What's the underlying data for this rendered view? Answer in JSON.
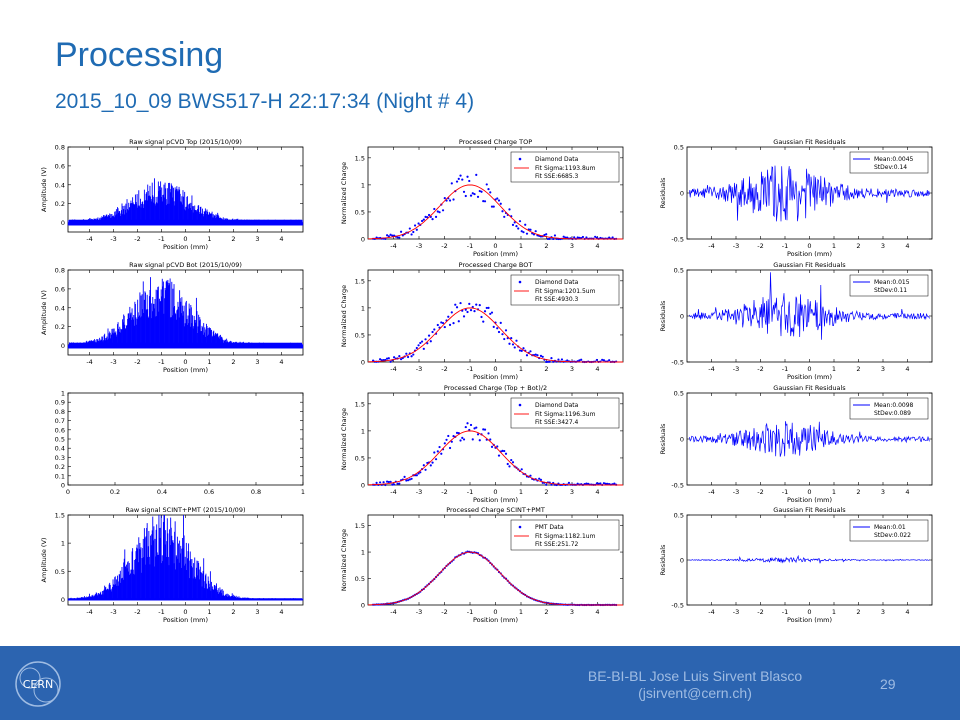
{
  "slide": {
    "title": "Processing",
    "subtitle": "2015_10_09 BWS517-H 22:17:34 (Night # 4)",
    "footer_line1": "BE-BI-BL Jose Luis Sirvent Blasco",
    "footer_line2": "(jsirvent@cern.ch)",
    "page_number": "29",
    "logo_text": "CERN"
  },
  "colors": {
    "accent": "#1f6bb3",
    "footer": "#2c64b0",
    "series_blue": "#0000ff",
    "fit_red": "#ff0000"
  },
  "chart_data": [
    {
      "type": "bar",
      "title": "Raw signal pCVD Top (2015/10/09)",
      "xlabel": "Position (mm)",
      "ylabel": "Amplitude (V)",
      "xlim": [
        -4.9,
        4.9
      ],
      "ylim": [
        -0.1,
        0.8
      ],
      "xticks": [
        -4,
        -3,
        -2,
        -1,
        0,
        1,
        2,
        3,
        4
      ],
      "yticks": [
        0,
        0.2,
        0.4,
        0.6,
        0.8
      ],
      "peak": 0.3,
      "center": -1.0,
      "sigma": 1.2,
      "noise": 0.03
    },
    {
      "type": "scatter",
      "title": "Processed Charge TOP",
      "xlabel": "Position (mm)",
      "ylabel": "Normalized Charge",
      "xlim": [
        -5,
        5
      ],
      "ylim": [
        0,
        1.7
      ],
      "xticks": [
        -4,
        -3,
        -2,
        -1,
        0,
        1,
        2,
        3,
        4
      ],
      "yticks": [
        0,
        0.5,
        1,
        1.5
      ],
      "legend": [
        "Diamond Data",
        "Fit Sigma:1193.8um",
        "Fit SSE:6685.3"
      ],
      "center": -1.0,
      "sigma": 1.19,
      "scatter_spread": 0.35
    },
    {
      "type": "line",
      "title": "Gaussian Fit Residuals",
      "xlabel": "Position (mm)",
      "ylabel": "Residuals",
      "xlim": [
        -5,
        5
      ],
      "ylim": [
        -0.5,
        0.5
      ],
      "xticks": [
        -4,
        -3,
        -2,
        -1,
        0,
        1,
        2,
        3,
        4
      ],
      "yticks": [
        -0.5,
        0,
        0.5
      ],
      "legend": [
        "Mean:0.0045",
        "StDev:0.14"
      ],
      "amp": 0.18
    },
    {
      "type": "bar",
      "title": "Raw signal pCVD Bot (2015/10/09)",
      "xlabel": "Position (mm)",
      "ylabel": "Amplitude (V)",
      "xlim": [
        -4.9,
        4.9
      ],
      "ylim": [
        -0.1,
        0.8
      ],
      "xticks": [
        -4,
        -3,
        -2,
        -1,
        0,
        1,
        2,
        3,
        4
      ],
      "yticks": [
        0,
        0.2,
        0.4,
        0.6,
        0.8
      ],
      "peak": 0.5,
      "center": -1.0,
      "sigma": 1.2,
      "noise": 0.03
    },
    {
      "type": "scatter",
      "title": "Processed Charge BOT",
      "xlabel": "Position (mm)",
      "ylabel": "Normalized Charge",
      "xlim": [
        -5,
        5
      ],
      "ylim": [
        0,
        1.7
      ],
      "xticks": [
        -4,
        -3,
        -2,
        -1,
        0,
        1,
        2,
        3,
        4
      ],
      "yticks": [
        0,
        0.5,
        1,
        1.5
      ],
      "legend": [
        "Diamond Data",
        "Fit Sigma:1201.5um",
        "Fit SSE:4930.3"
      ],
      "center": -1.0,
      "sigma": 1.2,
      "scatter_spread": 0.3
    },
    {
      "type": "line",
      "title": "Gaussian Fit Residuals",
      "xlabel": "Position (mm)",
      "ylabel": "Residuals",
      "xlim": [
        -5,
        5
      ],
      "ylim": [
        -0.5,
        0.5
      ],
      "xticks": [
        -4,
        -3,
        -2,
        -1,
        0,
        1,
        2,
        3,
        4
      ],
      "yticks": [
        -0.5,
        0,
        0.5
      ],
      "legend": [
        "Mean:0.015",
        "StDev:0.11"
      ],
      "amp": 0.14
    },
    {
      "type": "line",
      "title": "",
      "xlabel": "",
      "ylabel": "",
      "xlim": [
        0,
        1
      ],
      "ylim": [
        0,
        1
      ],
      "xticks": [
        0,
        0.2,
        0.4,
        0.6,
        0.8,
        1
      ],
      "yticks": [
        0,
        0.1,
        0.2,
        0.3,
        0.4,
        0.5,
        0.6,
        0.7,
        0.8,
        0.9,
        1
      ],
      "empty": true
    },
    {
      "type": "scatter",
      "title": "Processed Charge (Top + Bot)/2",
      "xlabel": "Position (mm)",
      "ylabel": "Normalized Charge",
      "xlim": [
        -5,
        5
      ],
      "ylim": [
        0,
        1.7
      ],
      "xticks": [
        -4,
        -3,
        -2,
        -1,
        0,
        1,
        2,
        3,
        4
      ],
      "yticks": [
        0,
        0.5,
        1,
        1.5
      ],
      "legend": [
        "Diamond Data",
        "Fit Sigma:1196.3um",
        "Fit SSE:3427.4"
      ],
      "center": -1.0,
      "sigma": 1.196,
      "scatter_spread": 0.25
    },
    {
      "type": "line",
      "title": "Gaussian Fit Residuals",
      "xlabel": "Position (mm)",
      "ylabel": "Residuals",
      "xlim": [
        -5,
        5
      ],
      "ylim": [
        -0.5,
        0.5
      ],
      "xticks": [
        -4,
        -3,
        -2,
        -1,
        0,
        1,
        2,
        3,
        4
      ],
      "yticks": [
        -0.5,
        0,
        0.5
      ],
      "legend": [
        "Mean:0.0098",
        "StDev:0.089"
      ],
      "amp": 0.11
    },
    {
      "type": "bar",
      "title": "Raw signal SCINT+PMT (2015/10/09)",
      "xlabel": "Position (mm)",
      "ylabel": "Amplitude (V)",
      "xlim": [
        -4.9,
        4.9
      ],
      "ylim": [
        -0.1,
        1.5
      ],
      "xticks": [
        -4,
        -3,
        -2,
        -1,
        0,
        1,
        2,
        3,
        4
      ],
      "yticks": [
        0,
        0.5,
        1,
        1.5
      ],
      "peak": 1.08,
      "center": -1.0,
      "sigma": 1.18,
      "noise": 0.02
    },
    {
      "type": "scatter",
      "title": "Processed Charge SCINT+PMT",
      "xlabel": "Position (mm)",
      "ylabel": "Normalized Charge",
      "xlim": [
        -5,
        5
      ],
      "ylim": [
        0,
        1.7
      ],
      "xticks": [
        -4,
        -3,
        -2,
        -1,
        0,
        1,
        2,
        3,
        4
      ],
      "yticks": [
        0,
        0.5,
        1,
        1.5
      ],
      "legend": [
        "PMT Data",
        "Fit Sigma:1182.1um",
        "Fit SSE:251.72"
      ],
      "center": -1.0,
      "sigma": 1.182,
      "scatter_spread": 0.02
    },
    {
      "type": "line",
      "title": "Gaussian Fit Residuals",
      "xlabel": "Position (mm)",
      "ylabel": "Residuals",
      "xlim": [
        -5,
        5
      ],
      "ylim": [
        -0.5,
        0.5
      ],
      "xticks": [
        -4,
        -3,
        -2,
        -1,
        0,
        1,
        2,
        3,
        4
      ],
      "yticks": [
        -0.5,
        0,
        0.5
      ],
      "legend": [
        "Mean:0.01",
        "StDev:0.022"
      ],
      "amp": 0.015
    }
  ]
}
